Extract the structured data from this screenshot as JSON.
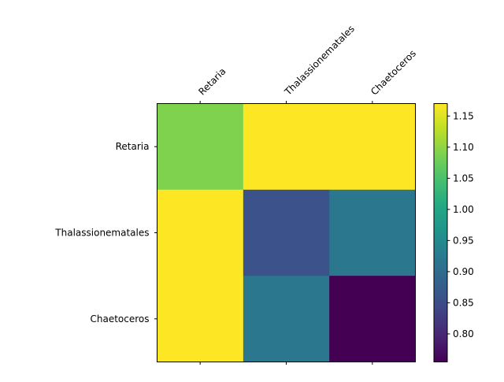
{
  "chart_data": {
    "type": "heatmap",
    "title": "",
    "xlabel": "",
    "ylabel": "",
    "x_categories": [
      "Retaria",
      "Thalassionematales",
      "Chaetoceros"
    ],
    "y_categories": [
      "Retaria",
      "Thalassionematales",
      "Chaetoceros"
    ],
    "values": [
      [
        1.09,
        1.17,
        1.17
      ],
      [
        1.17,
        0.86,
        0.92
      ],
      [
        1.17,
        0.92,
        0.755
      ]
    ],
    "colormap": "viridis",
    "color_range": [
      0.755,
      1.17
    ],
    "colorbar_ticks": [
      0.8,
      0.85,
      0.9,
      0.95,
      1.0,
      1.05,
      1.1,
      1.15
    ],
    "colorbar_tick_labels": [
      "0.80",
      "0.85",
      "0.90",
      "0.95",
      "1.00",
      "1.05",
      "1.10",
      "1.15"
    ],
    "x_tick_position": "top",
    "x_tick_rotation_deg": 45,
    "grid": false,
    "colors": {
      "axis": "#000000",
      "background": "#ffffff"
    }
  }
}
